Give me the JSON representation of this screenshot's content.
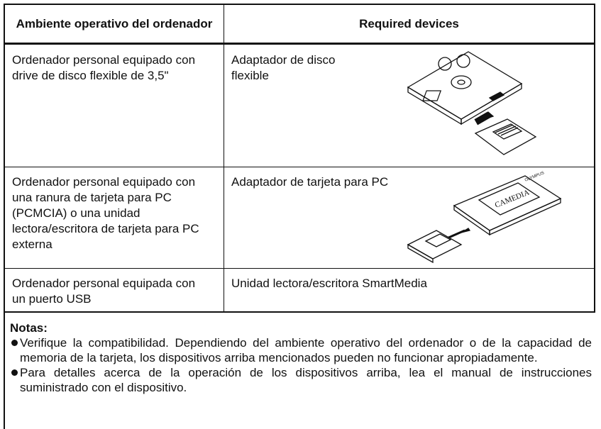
{
  "table": {
    "header": [
      "Ambiente operativo  del ordenador",
      "Required devices"
    ],
    "rows": [
      [
        "Ordenador personal equipado con drive de disco flexible de 3,5\"",
        "Adaptador de disco flexible"
      ],
      [
        "Ordenador personal equipado con una ranura de tarjeta para PC (PCMCIA) o una unidad lectora/escritora de tarjeta para PC externa",
        "Adaptador de tarjeta para PC"
      ],
      [
        "Ordenador personal equipada con un puerto USB",
        "Unidad lectora/escritora SmartMedia"
      ]
    ]
  },
  "illustrations": {
    "pc_card_logo": "CAMEDIA",
    "pc_card_brand": "OLYMPUS"
  },
  "notes": {
    "title": "Notas:",
    "items": [
      "Verifique la compatibilidad. Dependiendo del ambiente operativo del ordenador o de la capacidad de memoria de la tarjeta, los dispositivos arriba mencionados pueden no funcionar apropiadamente.",
      "Para detalles acerca de la operación de los dispositivos arriba, lea el manual de instrucciones suministrado con el dispositivo."
    ]
  }
}
